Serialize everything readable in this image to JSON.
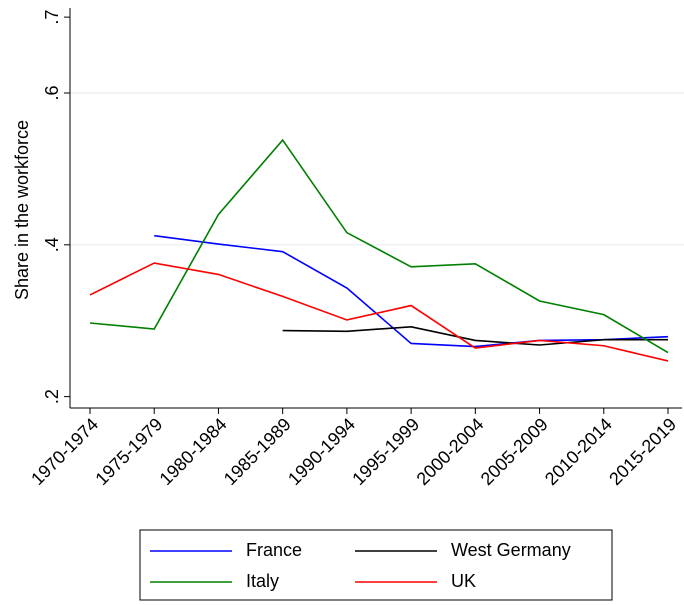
{
  "chart_data": {
    "type": "line",
    "y_label": "Share in the workforce",
    "categories": [
      "1970-1974",
      "1975-1979",
      "1980-1984",
      "1985-1989",
      "1990-1994",
      "1995-1999",
      "2000-2004",
      "2005-2009",
      "2010-2014",
      "2015-2019"
    ],
    "series": [
      {
        "name": "France",
        "color": "#0000ff",
        "values": [
          null,
          0.412,
          0.401,
          0.391,
          0.343,
          0.27,
          0.266,
          0.274,
          0.275,
          0.279
        ]
      },
      {
        "name": "West Germany",
        "color": "#000000",
        "values": [
          null,
          null,
          null,
          0.287,
          0.286,
          0.292,
          0.274,
          0.268,
          0.275,
          0.275
        ]
      },
      {
        "name": "Italy",
        "color": "#008000",
        "values": [
          0.297,
          0.289,
          0.44,
          0.538,
          0.416,
          0.371,
          0.375,
          0.326,
          0.308,
          0.258
        ]
      },
      {
        "name": "UK",
        "color": "#ff0000",
        "values": [
          0.334,
          0.376,
          0.361,
          0.332,
          0.301,
          0.32,
          0.264,
          0.274,
          0.267,
          0.247
        ]
      }
    ],
    "ylim": [
      0.185,
      0.712
    ],
    "yticks": [
      {
        "value": 0.2,
        "label": ".2"
      },
      {
        "value": 0.4,
        "label": ".4"
      },
      {
        "value": 0.6,
        "label": ".6"
      },
      {
        "value": 0.7,
        "label": ".7"
      }
    ],
    "grid": true,
    "legend": "bottom"
  }
}
